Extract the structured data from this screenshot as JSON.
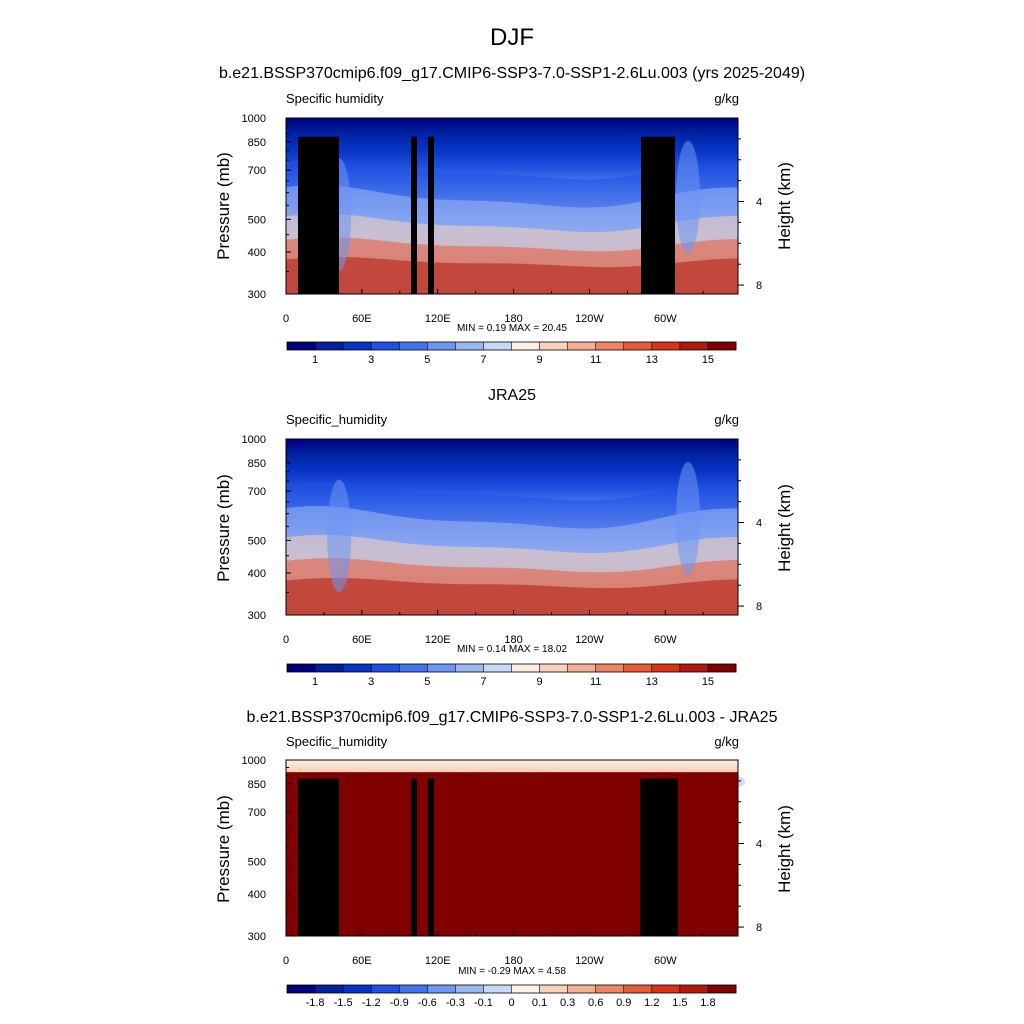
{
  "figure": {
    "season": "DJF"
  },
  "colors": {
    "scale_fixed": [
      "#00007f",
      "#0020a0",
      "#0834c4",
      "#2050e0",
      "#4274ee",
      "#6e96f4",
      "#9cb8f4",
      "#c6daf6",
      "#fbeee2",
      "#f8d2bc",
      "#f5af94",
      "#ee8562",
      "#e85b3a",
      "#d83418",
      "#b01a0c",
      "#800000"
    ],
    "scale_diff": [
      "#00007f",
      "#0020a0",
      "#0834c4",
      "#2050e0",
      "#4274ee",
      "#6e96f4",
      "#9cb8f4",
      "#c6daf6",
      "#fdf0e4",
      "#f8d2bc",
      "#f5af94",
      "#ee8562",
      "#e85b3a",
      "#d83418",
      "#b01a0c",
      "#800000"
    ],
    "land_mask": "#000000"
  },
  "chart_data": [
    {
      "type": "heatmap",
      "title": "b.e21.BSSP370cmip6.f09_g17.CMIP6-SSP3-7.0-SSP1-2.6Lu.003 (yrs 2025-2049)",
      "left_label": "Specific humidity",
      "units": "g/kg",
      "ylabel": "Pressure (mb)",
      "y2label": "Height (km)",
      "xticks": [
        "0",
        "60E",
        "120E",
        "180",
        "120W",
        "60W"
      ],
      "yticks": [
        "300",
        "400",
        "500",
        "700",
        "850",
        "1000"
      ],
      "y2ticks": [
        "8",
        "4"
      ],
      "stats": "MIN =   0.19  MAX =  20.45",
      "levels": [
        0.5,
        1,
        2,
        3,
        4,
        5,
        6,
        7,
        8,
        9,
        10,
        11,
        12,
        13,
        14,
        15
      ],
      "colorbar_labels": [
        "1",
        "3",
        "5",
        "7",
        "9",
        "11",
        "13",
        "15"
      ],
      "min": 0.19,
      "max": 20.45
    },
    {
      "type": "heatmap",
      "title": "JRA25",
      "left_label": "Specific_humidity",
      "units": "g/kg",
      "ylabel": "Pressure (mb)",
      "y2label": "Height (km)",
      "xticks": [
        "0",
        "60E",
        "120E",
        "180",
        "120W",
        "60W"
      ],
      "yticks": [
        "300",
        "400",
        "500",
        "700",
        "850",
        "1000"
      ],
      "y2ticks": [
        "8",
        "4"
      ],
      "stats": "MIN =   0.14  MAX =  18.02",
      "levels": [
        0.5,
        1,
        2,
        3,
        4,
        5,
        6,
        7,
        8,
        9,
        10,
        11,
        12,
        13,
        14,
        15
      ],
      "colorbar_labels": [
        "1",
        "3",
        "5",
        "7",
        "9",
        "11",
        "13",
        "15"
      ],
      "min": 0.14,
      "max": 18.02
    },
    {
      "type": "heatmap",
      "title": "b.e21.BSSP370cmip6.f09_g17.CMIP6-SSP3-7.0-SSP1-2.6Lu.003 - JRA25",
      "left_label": "Specific_humidity",
      "units": "g/kg",
      "ylabel": "Pressure (mb)",
      "y2label": "Height (km)",
      "xticks": [
        "0",
        "60E",
        "120E",
        "180",
        "120W",
        "60W"
      ],
      "yticks": [
        "300",
        "400",
        "500",
        "700",
        "850",
        "1000"
      ],
      "y2ticks": [
        "8",
        "4"
      ],
      "stats": "MIN =  -0.29  MAX =   4.58",
      "levels": [
        -1.8,
        -1.5,
        -1.2,
        -0.9,
        -0.6,
        -0.3,
        -0.1,
        0,
        0.1,
        0.3,
        0.6,
        0.9,
        1.2,
        1.5,
        1.8
      ],
      "colorbar_labels": [
        "-1.8",
        "-1.5",
        "-1.2",
        "-0.9",
        "-0.6",
        "-0.3",
        "-0.1",
        "0",
        "0.1",
        "0.3",
        "0.6",
        "0.9",
        "1.2",
        "1.5",
        "1.8"
      ],
      "min": -0.29,
      "max": 4.58
    }
  ]
}
